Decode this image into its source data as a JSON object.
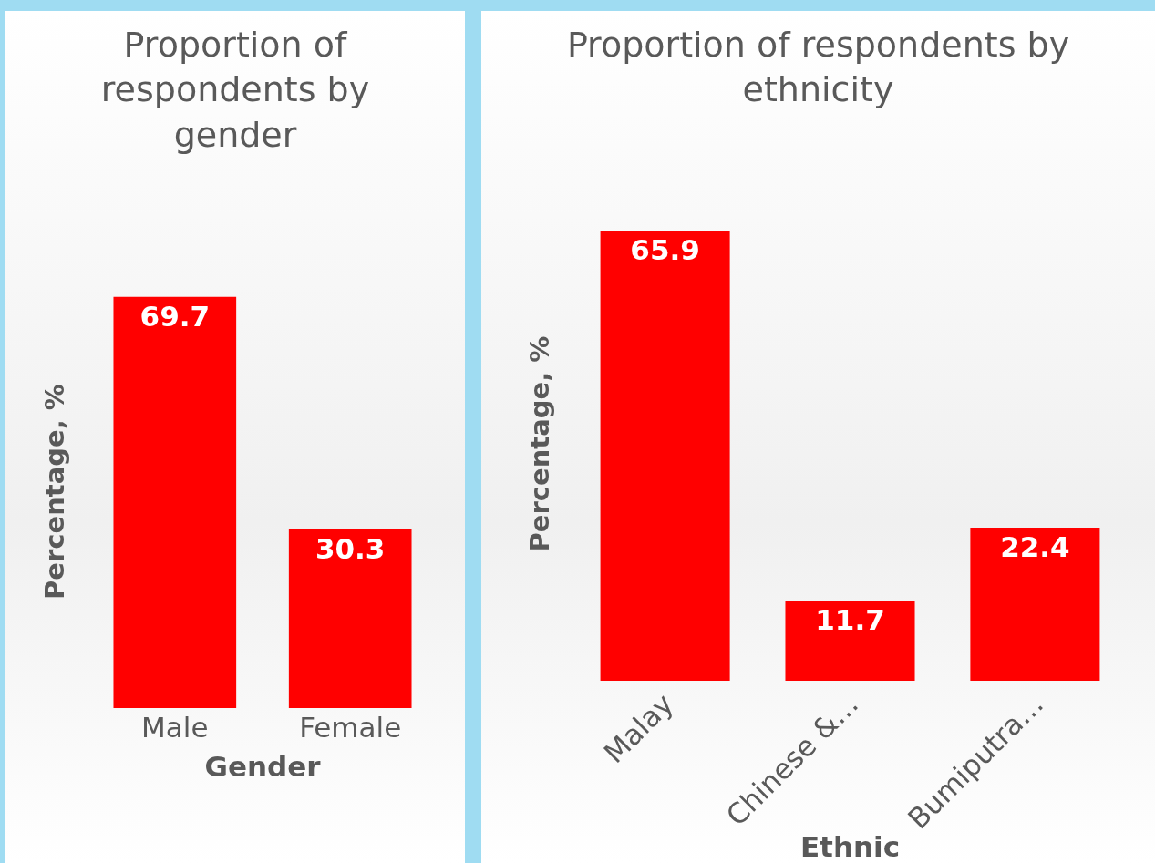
{
  "chart_data": [
    {
      "type": "bar",
      "title": "Proportion of respondents by gender",
      "xlabel": "Gender",
      "ylabel": "Percentage, %",
      "categories": [
        "Male",
        "Female"
      ],
      "values": [
        69.7,
        30.3
      ],
      "color": "#ff0000",
      "data_labels": true,
      "grid": false,
      "legend": false,
      "tick_labels": "x"
    },
    {
      "type": "bar",
      "title": "Proportion of respondents by ethnicity",
      "xlabel": "Ethnic",
      "ylabel": "Percentage, %",
      "categories": [
        "Malay",
        "Chinese &…",
        "Bumiputra…"
      ],
      "values": [
        65.9,
        11.7,
        22.4
      ],
      "color": "#ff0000",
      "data_labels": true,
      "grid": false,
      "legend": false,
      "tick_labels": "x"
    }
  ]
}
